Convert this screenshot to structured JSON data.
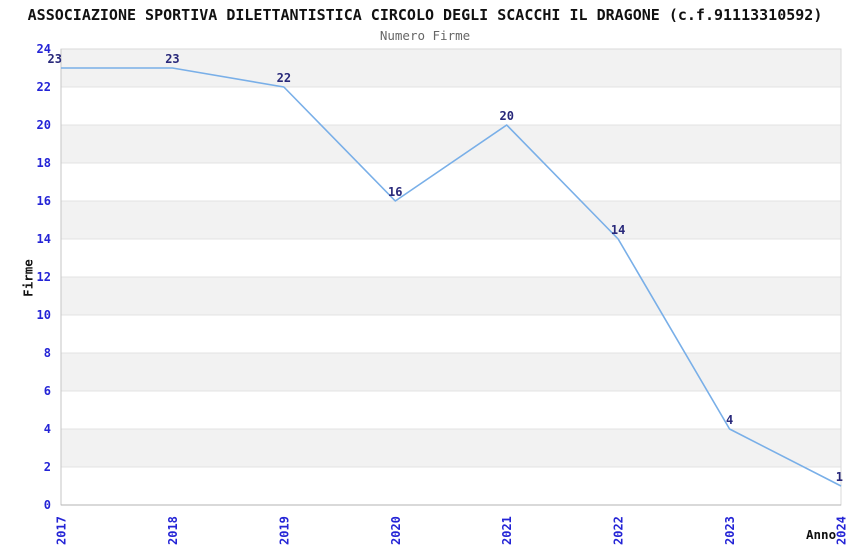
{
  "chart_data": {
    "type": "line",
    "title": "ASSOCIAZIONE SPORTIVA DILETTANTISTICA CIRCOLO DEGLI SCACCHI IL DRAGONE (c.f.91113310592)",
    "subtitle": "Numero Firme",
    "xlabel": "Anno",
    "ylabel": "Firme",
    "categories": [
      "2017",
      "2018",
      "2019",
      "2020",
      "2021",
      "2022",
      "2023",
      "2024"
    ],
    "series": [
      {
        "name": "Numero Firme",
        "values": [
          23,
          23,
          22,
          16,
          20,
          14,
          4,
          1
        ]
      }
    ],
    "data_labels_shown": true,
    "ylim": [
      0,
      24
    ],
    "yticks": [
      0,
      2,
      4,
      6,
      8,
      10,
      12,
      14,
      16,
      18,
      20,
      22,
      24
    ],
    "grid": "horizontal-bands-alternating",
    "legend": "none",
    "colors": {
      "line": "#79afe8",
      "tick_label": "#2424d6",
      "point_label": "#28287a",
      "band": "#f2f2f2",
      "gridline": "#e3e3e3",
      "plot_border": "#d9d9d9",
      "axis_left": "#c6c6c6",
      "axis_bottom": "#b3b3b3",
      "title": "#111111",
      "subtitle": "#666666"
    }
  }
}
